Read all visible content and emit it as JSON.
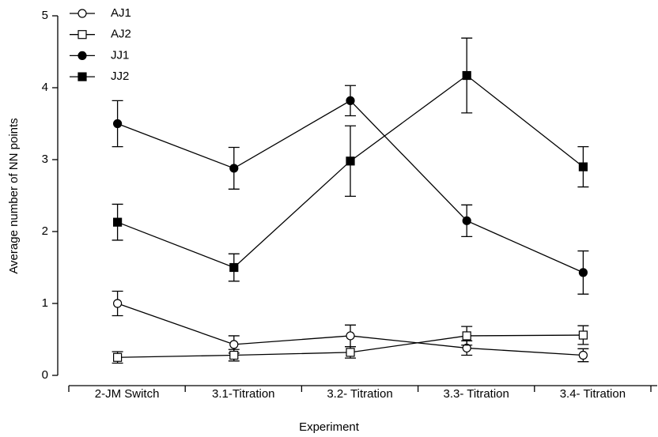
{
  "chart_data": {
    "type": "line",
    "xlabel": "Experiment",
    "ylabel": "Average number of NN points",
    "categories": [
      "2-JM Switch",
      "3.1-Titration",
      "3.2- Titration",
      "3.3- Titration",
      "3.4- Titration"
    ],
    "ylim": [
      0,
      5
    ],
    "yticks": [
      0,
      1,
      2,
      3,
      4,
      5
    ],
    "legend": "top-left",
    "series": [
      {
        "name": "AJ1",
        "color": "#000000",
        "marker": "circle",
        "filled": false,
        "values": [
          1.0,
          0.43,
          0.55,
          0.38,
          0.28
        ],
        "errors": [
          0.17,
          0.12,
          0.15,
          0.1,
          0.09
        ]
      },
      {
        "name": "AJ2",
        "color": "#000000",
        "marker": "square",
        "filled": false,
        "values": [
          0.25,
          0.28,
          0.32,
          0.55,
          0.56
        ],
        "errors": [
          0.08,
          0.08,
          0.08,
          0.13,
          0.13
        ]
      },
      {
        "name": "JJ1",
        "color": "#000000",
        "marker": "circle",
        "filled": true,
        "values": [
          3.5,
          2.88,
          3.82,
          2.15,
          1.43
        ],
        "errors": [
          0.32,
          0.29,
          0.21,
          0.22,
          0.3
        ]
      },
      {
        "name": "JJ2",
        "color": "#000000",
        "marker": "square",
        "filled": true,
        "values": [
          2.13,
          1.5,
          2.98,
          4.17,
          2.9
        ],
        "errors": [
          0.25,
          0.19,
          0.49,
          0.52,
          0.28
        ]
      }
    ]
  }
}
